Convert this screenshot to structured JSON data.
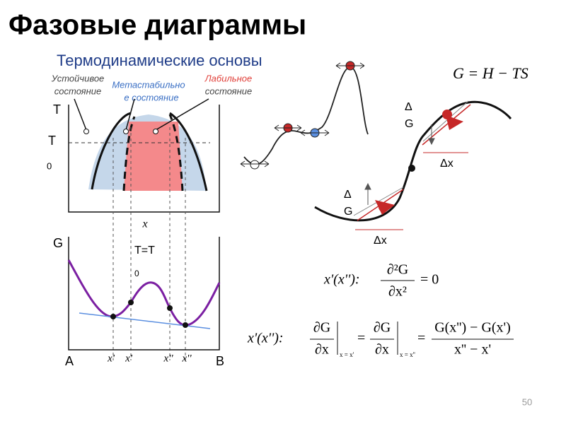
{
  "title": "Фазовые диаграммы",
  "subtitle": "Термодинамические основы",
  "states": {
    "stable": [
      "Устойчивое",
      "состояние"
    ],
    "metastable": [
      "Метастабильно",
      "е состояние"
    ],
    "labile": [
      "Лабильное",
      "состояние"
    ]
  },
  "top_plot": {
    "y_label": "T",
    "t0_label": [
      "T",
      "0"
    ],
    "x_label": "x"
  },
  "bottom_plot": {
    "y_label": "G",
    "condition": [
      "T=T",
      "0"
    ],
    "left": "A",
    "right": "B",
    "x_marks": [
      "x'",
      "x'",
      "x''",
      "x''"
    ]
  },
  "formula": "G = H − TS",
  "slope": {
    "delta_g": [
      "Δ",
      "G"
    ],
    "delta_x": "Δx"
  },
  "equations": {
    "spinodal": {
      "lhs": "x'(x''):",
      "numerator": "∂²G",
      "denominator": "∂x²",
      "rhs": "= 0"
    },
    "binodal": {
      "lhs": "x'(x''):",
      "numerator": "∂G",
      "denominator": "∂x",
      "sub1": "x = x'",
      "sub2": "x = x''",
      "eq": "=",
      "frac_num": "G(x'') − G(x')",
      "frac_den": "x'' − x'"
    }
  },
  "page_number": "50"
}
